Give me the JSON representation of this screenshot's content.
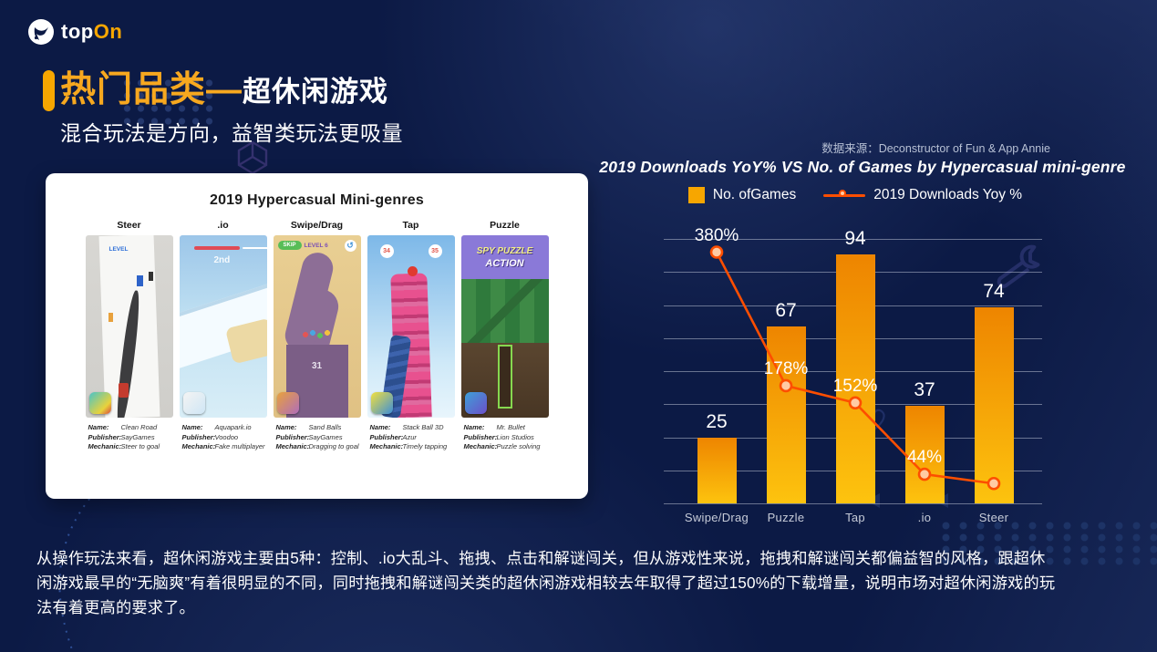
{
  "slide": {
    "brand": {
      "logo_top": "top",
      "logo_on": "On"
    },
    "title": {
      "highlight": "热门品类—",
      "rest": "超休闲游戏",
      "subtitle": "混合玩法是方向，益智类玩法更吸量"
    },
    "source_note": "数据来源：Deconstructor of Fun & App Annie",
    "footer_paragraph": "从操作玩法来看，超休闲游戏主要由5种：控制、.io大乱斗、拖拽、点击和解谜闯关，但从游戏性来说，拖拽和解谜闯关都偏益智的风格，跟超休闲游戏最早的“无脑爽”有着很明显的不同，同时拖拽和解谜闯关类的超休闲游戏相较去年取得了超过150%的下载增量，说明市场对超休闲游戏的玩法有着更高的要求了。"
  },
  "card": {
    "title": "2019 Hypercasual Mini-genres",
    "row_labels": {
      "name": "Name:",
      "publisher": "Publisher:",
      "mechanic": "Mechanic:"
    },
    "games": [
      {
        "genre": "Steer",
        "style": "steer",
        "name": "Clean Road",
        "publisher": "SayGames",
        "mechanic": "Steer to goal",
        "badges": [
          {
            "text": "LEVEL",
            "cls": "b-level",
            "nm": "level-label"
          }
        ]
      },
      {
        "genre": ".io",
        "style": "io",
        "name": "Aquapark.io",
        "publisher": "Voodoo",
        "mechanic": "Fake multiplayer",
        "badges": [
          {
            "text": "2nd",
            "cls": "b-2nd",
            "nm": "rank-label"
          }
        ]
      },
      {
        "genre": "Swipe/Drag",
        "style": "swipe",
        "name": "Sand Balls",
        "publisher": "SayGames",
        "mechanic": "Dragging to goal",
        "badges": [
          {
            "text": "SKIP",
            "cls": "b-skip",
            "nm": "skip-button-label"
          },
          {
            "text": "LEVEL 6",
            "cls": "b-lvl6",
            "nm": "level-label"
          },
          {
            "text": "31",
            "cls": "b-31",
            "nm": "level-number"
          },
          {
            "text": "↺",
            "cls": "undo",
            "nm": "undo-icon"
          }
        ]
      },
      {
        "genre": "Tap",
        "style": "tap",
        "name": "Stack Ball 3D",
        "publisher": "Azur",
        "mechanic": "Timely tapping",
        "badges": [
          {
            "text": "34",
            "cls": "b-n1",
            "nm": "progress-from"
          },
          {
            "text": "35",
            "cls": "b-n2",
            "nm": "progress-to"
          }
        ]
      },
      {
        "genre": "Puzzle",
        "style": "puzzle",
        "name": "Mr. Bullet",
        "publisher": "Lion Studios",
        "mechanic": "Puzzle solving",
        "badges": [
          {
            "text": "SPY PUZZLE",
            "cls": "b-spy1",
            "nm": "banner-line1"
          },
          {
            "text": "ACTION",
            "cls": "b-spy2",
            "nm": "banner-line2"
          }
        ]
      }
    ]
  },
  "chart_data": {
    "type": "bar+line",
    "title": "2019 Downloads YoY% VS No. of Games by Hypercasual mini-genre",
    "categories": [
      "Swipe/Drag",
      "Puzzle",
      "Tap",
      ".io",
      "Steer"
    ],
    "series": [
      {
        "name": "No. ofGames",
        "type": "bar",
        "values": [
          25,
          67,
          94,
          37,
          74
        ],
        "value_labels": [
          "25",
          "67",
          "94",
          "37",
          "74"
        ],
        "axis_max": 100,
        "color_top": "#ee8500",
        "color_bottom": "#fdc30e"
      },
      {
        "name": "2019 Downloads Yoy %",
        "type": "line",
        "values": [
          380,
          178,
          152,
          44,
          30
        ],
        "value_labels": [
          "380%",
          "178%",
          "152%",
          "44%",
          ""
        ],
        "axis_max": 400,
        "color": "#fd4e00",
        "marker_fill": "#ffcba4"
      }
    ],
    "gridlines": 9,
    "grid_on": true,
    "legend_position": "top",
    "ylabel": "",
    "xlabel": ""
  },
  "colors": {
    "accent": "#f7a600",
    "line": "#fd4e00",
    "background": "#0c1a45",
    "text": "#ffffff"
  }
}
